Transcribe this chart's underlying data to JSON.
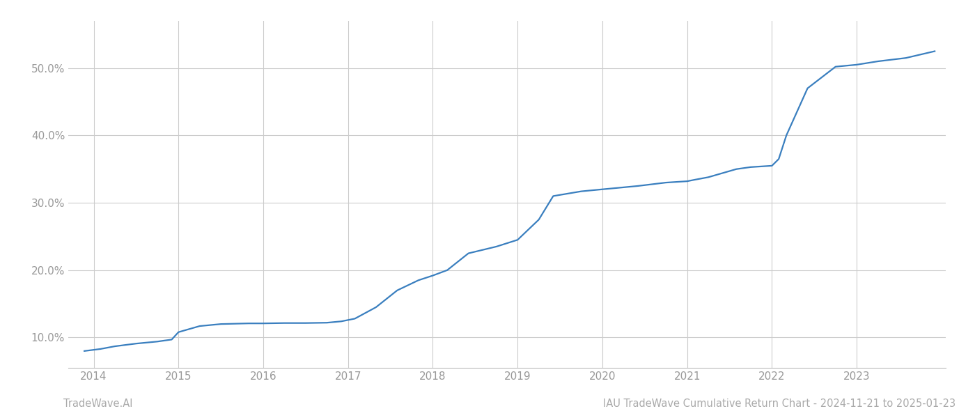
{
  "title": "IAU TradeWave Cumulative Return Chart - 2024-11-21 to 2025-01-23",
  "watermark": "TradeWave.AI",
  "line_color": "#3a7fbf",
  "background_color": "#ffffff",
  "grid_color": "#cccccc",
  "x_years": [
    2014,
    2015,
    2016,
    2017,
    2018,
    2019,
    2020,
    2021,
    2022,
    2023
  ],
  "x_data": [
    2013.89,
    2014.08,
    2014.25,
    2014.5,
    2014.75,
    2014.92,
    2015.0,
    2015.25,
    2015.5,
    2015.83,
    2016.0,
    2016.25,
    2016.5,
    2016.75,
    2016.92,
    2017.08,
    2017.33,
    2017.58,
    2017.83,
    2018.0,
    2018.17,
    2018.42,
    2018.75,
    2019.0,
    2019.25,
    2019.42,
    2019.75,
    2020.0,
    2020.17,
    2020.42,
    2020.75,
    2021.0,
    2021.08,
    2021.25,
    2021.58,
    2021.75,
    2022.0,
    2022.08,
    2022.17,
    2022.42,
    2022.75,
    2023.0,
    2023.25,
    2023.58,
    2023.92
  ],
  "y_data": [
    8.0,
    8.3,
    8.7,
    9.1,
    9.4,
    9.7,
    10.8,
    11.7,
    12.0,
    12.1,
    12.1,
    12.15,
    12.15,
    12.2,
    12.4,
    12.8,
    14.5,
    17.0,
    18.5,
    19.2,
    20.0,
    22.5,
    23.5,
    24.5,
    27.5,
    31.0,
    31.7,
    32.0,
    32.2,
    32.5,
    33.0,
    33.2,
    33.4,
    33.8,
    35.0,
    35.3,
    35.5,
    36.5,
    40.0,
    47.0,
    50.2,
    50.5,
    51.0,
    51.5,
    52.5
  ],
  "ylim": [
    5.5,
    57
  ],
  "yticks": [
    10.0,
    20.0,
    30.0,
    40.0,
    50.0
  ],
  "xlim": [
    2013.7,
    2024.05
  ],
  "title_fontsize": 10.5,
  "watermark_fontsize": 10.5,
  "tick_label_color": "#999999",
  "footer_color": "#aaaaaa",
  "line_width": 1.6
}
